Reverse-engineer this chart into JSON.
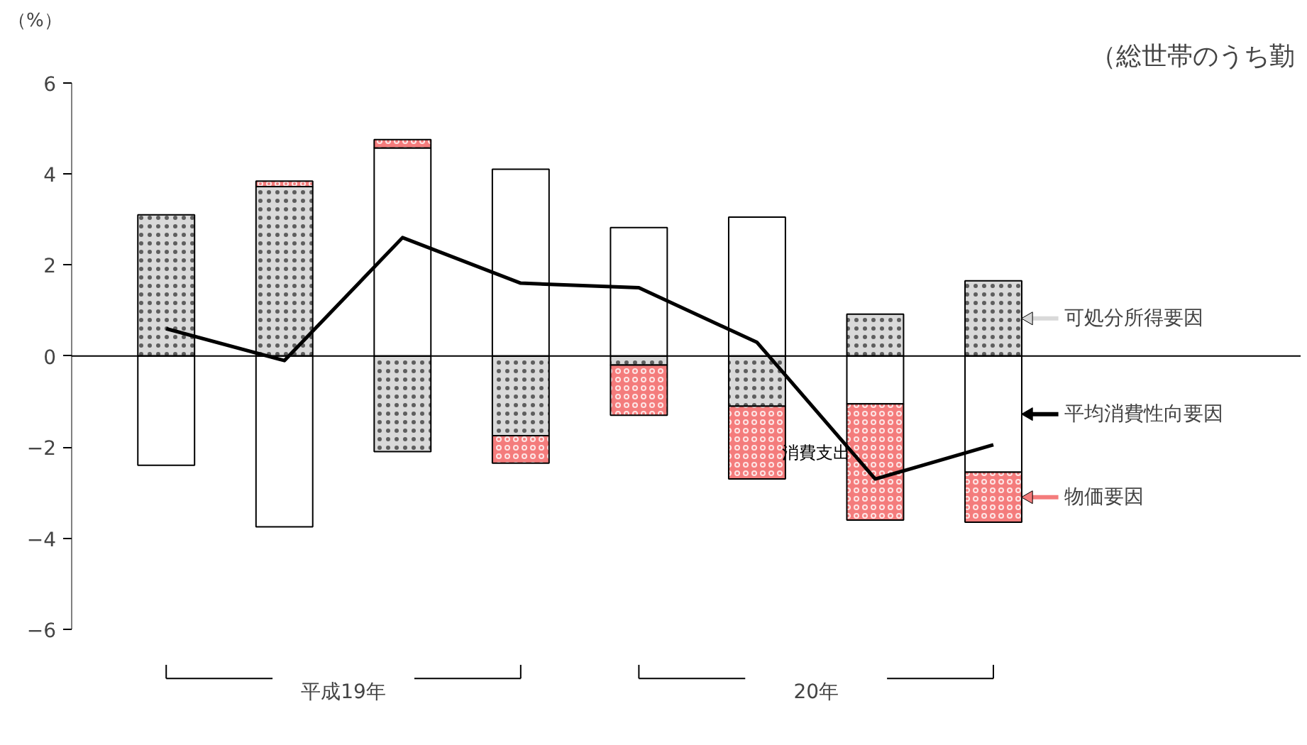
{
  "chart_data": {
    "type": "bar",
    "stacked": true,
    "title": "（総世帯のうち勤",
    "ylabel": "（%）",
    "categories": [
      null,
      null,
      null,
      null,
      null,
      null,
      null,
      null
    ],
    "series": [
      {
        "name": "可処分所得要因",
        "color": "#d9d9d9",
        "values": [
          3.1,
          3.72,
          -2.1,
          -1.75,
          -0.2,
          -1.1,
          0.92,
          1.65
        ]
      },
      {
        "name": "平均消費性向要因",
        "color": "#ffffff",
        "values": [
          -2.4,
          -3.75,
          4.57,
          4.1,
          2.82,
          3.05,
          -1.05,
          -2.55
        ]
      },
      {
        "name": "物価要因",
        "color": "#f47c7c",
        "values": [
          0,
          0.12,
          0.18,
          -0.6,
          -1.1,
          -1.6,
          -2.55,
          -1.1
        ]
      },
      {
        "name": "消費支出",
        "type": "line",
        "color": "#000000",
        "values": [
          0.6,
          -0.1,
          2.6,
          1.6,
          1.5,
          0.3,
          -2.7,
          -1.95
        ]
      }
    ],
    "legend": "right",
    "ref_lines": [
      {
        "axis": "y",
        "value": 0,
        "color": "#000000"
      }
    ],
    "ylim": [
      -6,
      6
    ],
    "yticks": [
      -6,
      -4,
      -2,
      0,
      2,
      4,
      6
    ],
    "grid": false,
    "tick_labels": "y",
    "annotations": [
      "平成19年",
      "20年"
    ]
  }
}
